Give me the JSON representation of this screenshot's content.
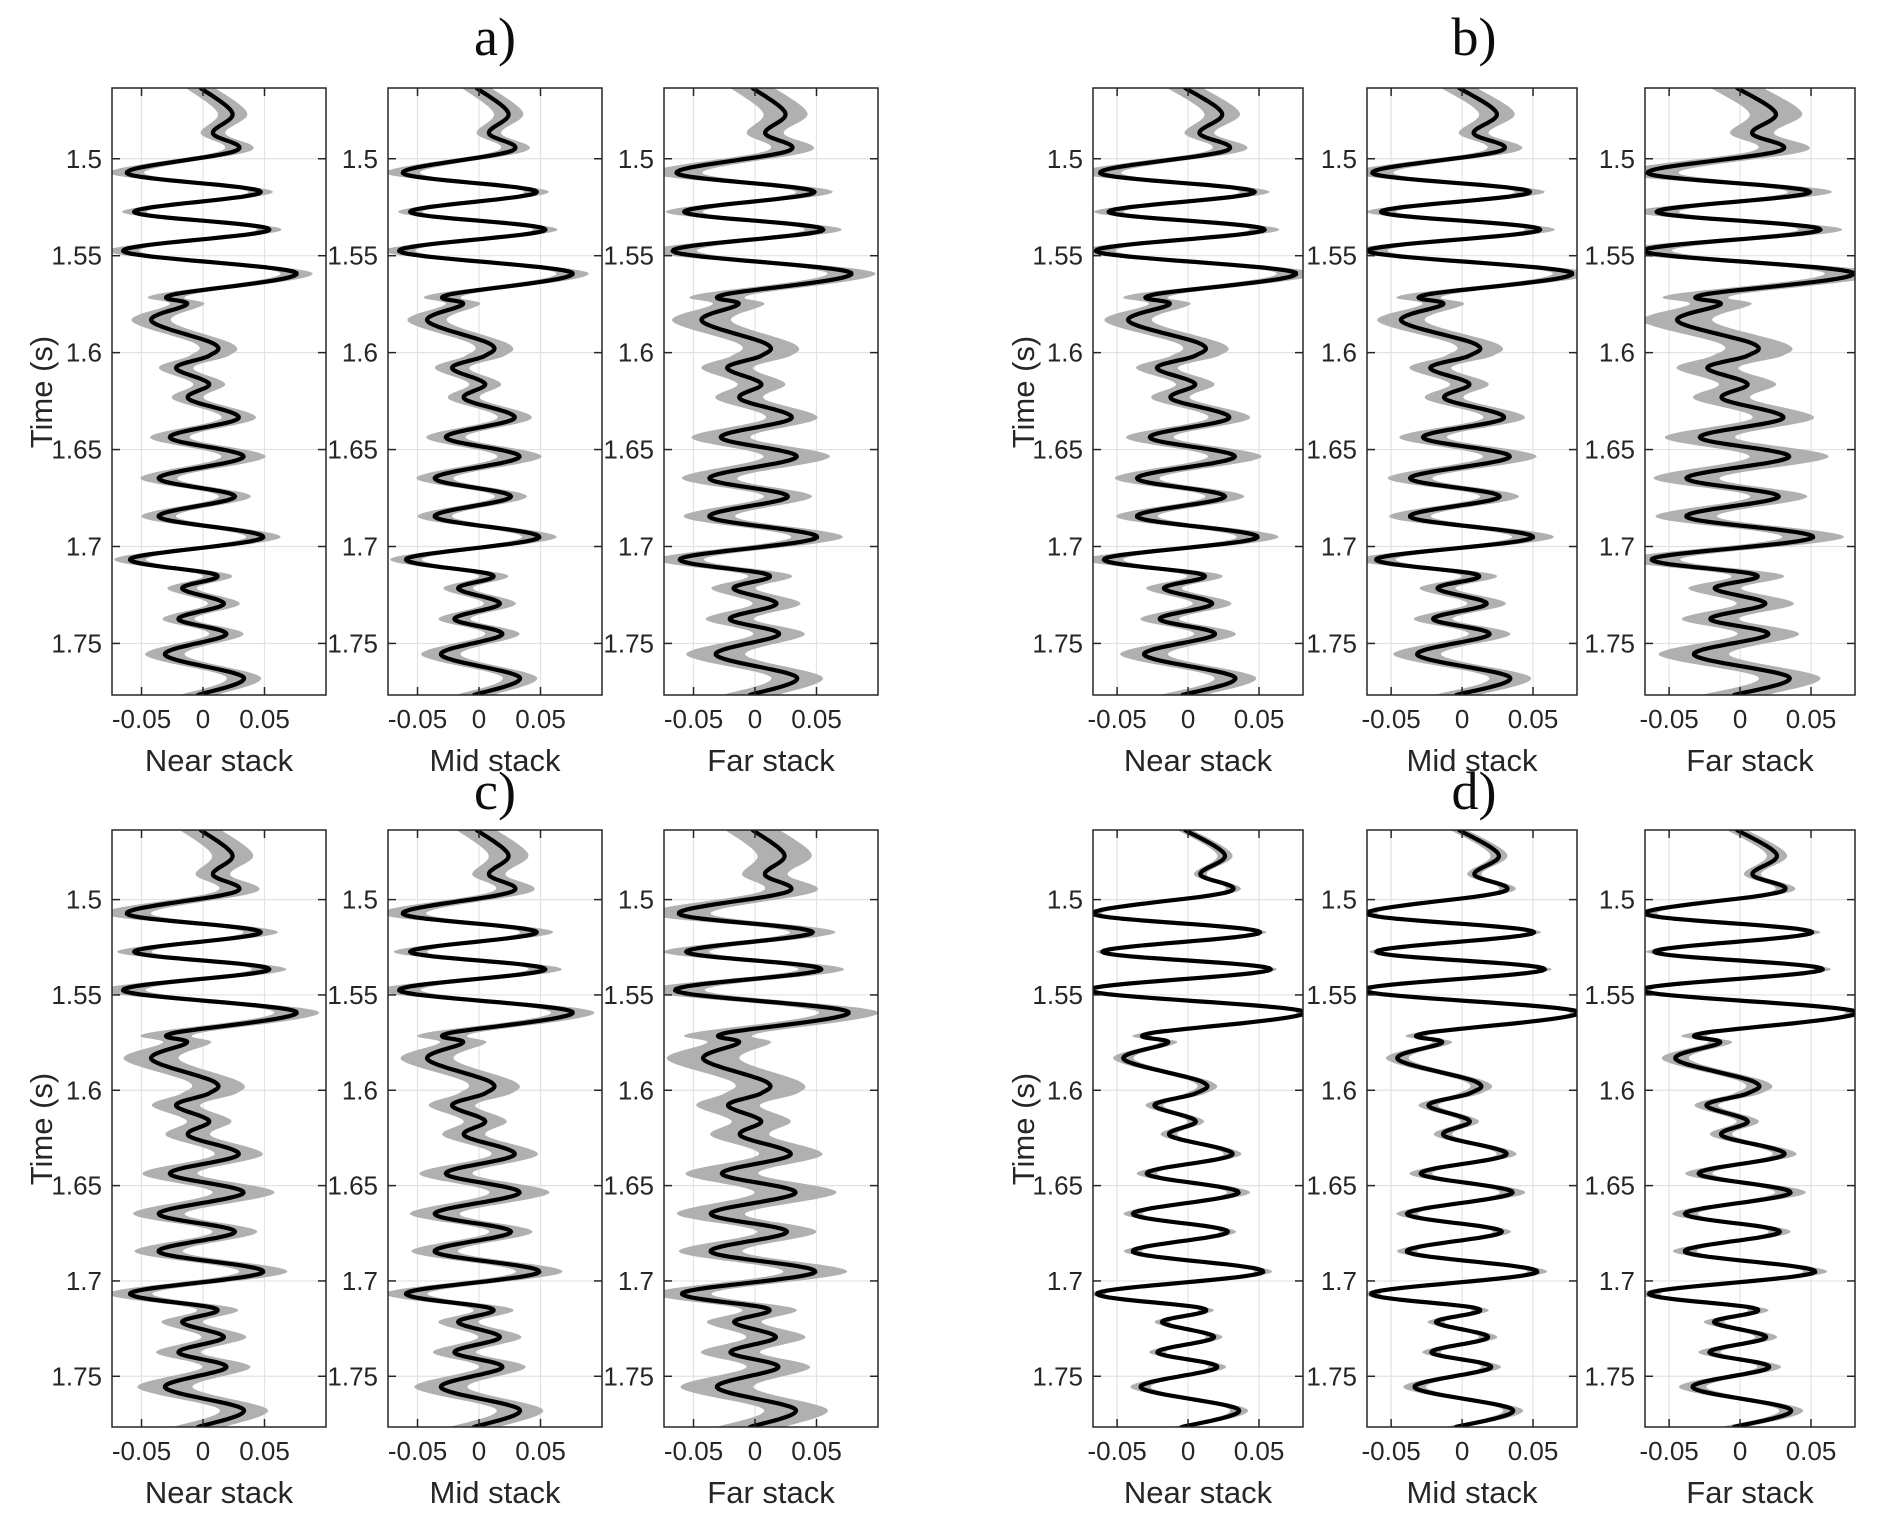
{
  "chart_data": {
    "type": "line",
    "ylabel": "Time (s)",
    "ylim": [
      1.4635,
      1.7766
    ],
    "yticks": [
      1.5,
      1.55,
      1.6,
      1.65,
      1.7,
      1.75
    ],
    "ytick_labels": [
      "1.5",
      "1.55",
      "1.6",
      "1.65",
      "1.7",
      "1.75"
    ],
    "xticks": [
      -0.05,
      0,
      0.05
    ],
    "xtick_labels": [
      "-0.05",
      "0",
      "0.05"
    ],
    "xlim_left_panels": [
      -0.074,
      0.1
    ],
    "xlim_right_panels": [
      -0.067,
      0.081
    ],
    "colors": {
      "trace": "#000000",
      "band": "#b0b0b0",
      "grid": "#e2e2e2",
      "axis": "#262626"
    },
    "trace": {
      "comment_t": "time (s) of trace control points",
      "t": [
        1.4635,
        1.4766,
        1.4868,
        1.4958,
        1.5074,
        1.5171,
        1.5274,
        1.5366,
        1.5476,
        1.5589,
        1.5703,
        1.575,
        1.5837,
        1.5955,
        1.6016,
        1.6079,
        1.6161,
        1.6237,
        1.6337,
        1.6437,
        1.6537,
        1.6647,
        1.6742,
        1.6847,
        1.6953,
        1.7063,
        1.7147,
        1.7216,
        1.7295,
        1.7374,
        1.7453,
        1.7558,
        1.7674,
        1.7766
      ],
      "a": [
        -0.002,
        0.024,
        0.008,
        0.027,
        -0.062,
        0.047,
        -0.056,
        0.054,
        -0.065,
        0.076,
        -0.026,
        -0.013,
        -0.042,
        0.009,
        0.005,
        -0.022,
        0.005,
        -0.012,
        0.029,
        -0.027,
        0.033,
        -0.036,
        0.026,
        -0.036,
        0.049,
        -0.059,
        0.011,
        -0.017,
        0.017,
        -0.02,
        0.019,
        -0.031,
        0.033,
        -0.004
      ],
      "w": [
        0.012,
        0.012,
        0.01,
        0.012,
        0.014,
        0.01,
        0.01,
        0.01,
        0.013,
        0.013,
        0.015,
        0.014,
        0.016,
        0.015,
        0.016,
        0.014,
        0.013,
        0.013,
        0.014,
        0.016,
        0.018,
        0.015,
        0.013,
        0.014,
        0.014,
        0.013,
        0.012,
        0.012,
        0.013,
        0.013,
        0.014,
        0.016,
        0.014,
        0.015
      ]
    },
    "panels": [
      {
        "id": "a",
        "label": "a)",
        "stacks": [
          {
            "name": "Near stack",
            "amp_scale": 1.0,
            "band_scale": 1.0
          },
          {
            "name": "Mid stack",
            "amp_scale": 1.0,
            "band_scale": 1.0
          },
          {
            "name": "Far stack",
            "amp_scale": 1.03,
            "band_scale": 1.5
          }
        ]
      },
      {
        "id": "b",
        "label": "b)",
        "stacks": [
          {
            "name": "Near stack",
            "amp_scale": 1.0,
            "band_scale": 1.05
          },
          {
            "name": "Mid stack",
            "amp_scale": 1.02,
            "band_scale": 1.05
          },
          {
            "name": "Far stack",
            "amp_scale": 1.05,
            "band_scale": 1.55
          }
        ]
      },
      {
        "id": "c",
        "label": "c)",
        "stacks": [
          {
            "name": "Near stack",
            "amp_scale": 1.0,
            "band_scale": 1.4
          },
          {
            "name": "Mid stack",
            "amp_scale": 1.0,
            "band_scale": 1.35
          },
          {
            "name": "Far stack",
            "amp_scale": 1.0,
            "band_scale": 1.85
          }
        ]
      },
      {
        "id": "d",
        "label": "d)",
        "stacks": [
          {
            "name": "Near stack",
            "amp_scale": 1.08,
            "band_scale": 0.45
          },
          {
            "name": "Mid stack",
            "amp_scale": 1.08,
            "band_scale": 0.5
          },
          {
            "name": "Far stack",
            "amp_scale": 1.08,
            "band_scale": 0.6
          }
        ]
      }
    ]
  }
}
